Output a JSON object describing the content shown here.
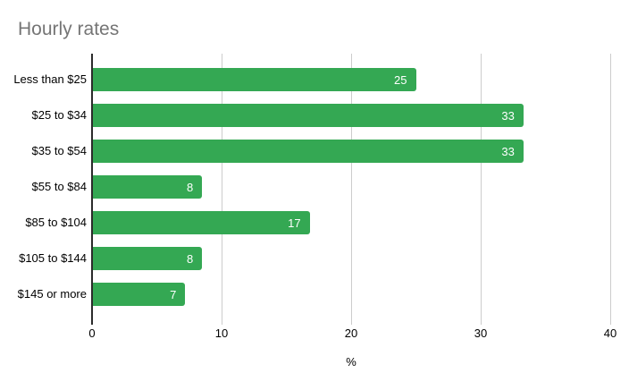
{
  "chart_data": {
    "type": "bar",
    "orientation": "horizontal",
    "title": "Hourly rates",
    "categories": [
      "Less than $25",
      "$25 to $34",
      "$35 to $54",
      "$55 to $84",
      "$85 to $104",
      "$105 to $144",
      "$145 or more"
    ],
    "values": [
      25,
      33,
      33,
      8,
      17,
      8,
      7
    ],
    "plot_values": [
      25,
      33.3,
      33.3,
      8.5,
      16.8,
      8.5,
      7.2
    ],
    "xlabel": "%",
    "ylabel": "",
    "xlim": [
      0,
      40
    ],
    "x_ticks": [
      0,
      10,
      20,
      30,
      40
    ],
    "grid": true,
    "legend": "none",
    "colors": {
      "bar": "#34a853",
      "bar_value_text": "#ffffff",
      "title_text": "#757575",
      "axis_label_text": "#000000",
      "gridline": "#cccccc",
      "baseline": "#2b2b2b",
      "background": "#ffffff"
    }
  }
}
